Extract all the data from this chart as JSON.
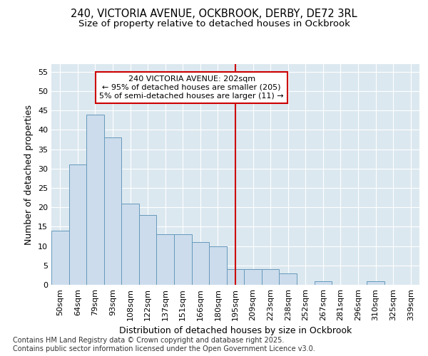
{
  "title_line1": "240, VICTORIA AVENUE, OCKBROOK, DERBY, DE72 3RL",
  "title_line2": "Size of property relative to detached houses in Ockbrook",
  "xlabel": "Distribution of detached houses by size in Ockbrook",
  "ylabel": "Number of detached properties",
  "categories": [
    "50sqm",
    "64sqm",
    "79sqm",
    "93sqm",
    "108sqm",
    "122sqm",
    "137sqm",
    "151sqm",
    "166sqm",
    "180sqm",
    "195sqm",
    "209sqm",
    "223sqm",
    "238sqm",
    "252sqm",
    "267sqm",
    "281sqm",
    "296sqm",
    "310sqm",
    "325sqm",
    "339sqm"
  ],
  "values": [
    14,
    31,
    44,
    38,
    21,
    18,
    13,
    13,
    11,
    10,
    4,
    4,
    4,
    3,
    0,
    1,
    0,
    0,
    1,
    0,
    0
  ],
  "bar_color": "#ccdcec",
  "bar_edge_color": "#6699bb",
  "vline_x_index": 10,
  "vline_color": "#cc0000",
  "annotation_title": "240 VICTORIA AVENUE: 202sqm",
  "annotation_line1": "← 95% of detached houses are smaller (205)",
  "annotation_line2": "5% of semi-detached houses are larger (11) →",
  "annotation_box_color": "#ffffff",
  "annotation_box_edge": "#cc0000",
  "ylim": [
    0,
    57
  ],
  "yticks": [
    0,
    5,
    10,
    15,
    20,
    25,
    30,
    35,
    40,
    45,
    50,
    55
  ],
  "background_color": "#ffffff",
  "plot_background": "#dce8f0",
  "grid_color": "#ffffff",
  "footer_line1": "Contains HM Land Registry data © Crown copyright and database right 2025.",
  "footer_line2": "Contains public sector information licensed under the Open Government Licence v3.0.",
  "title_fontsize": 10.5,
  "subtitle_fontsize": 9.5,
  "tick_fontsize": 8,
  "label_fontsize": 9,
  "footer_fontsize": 7
}
